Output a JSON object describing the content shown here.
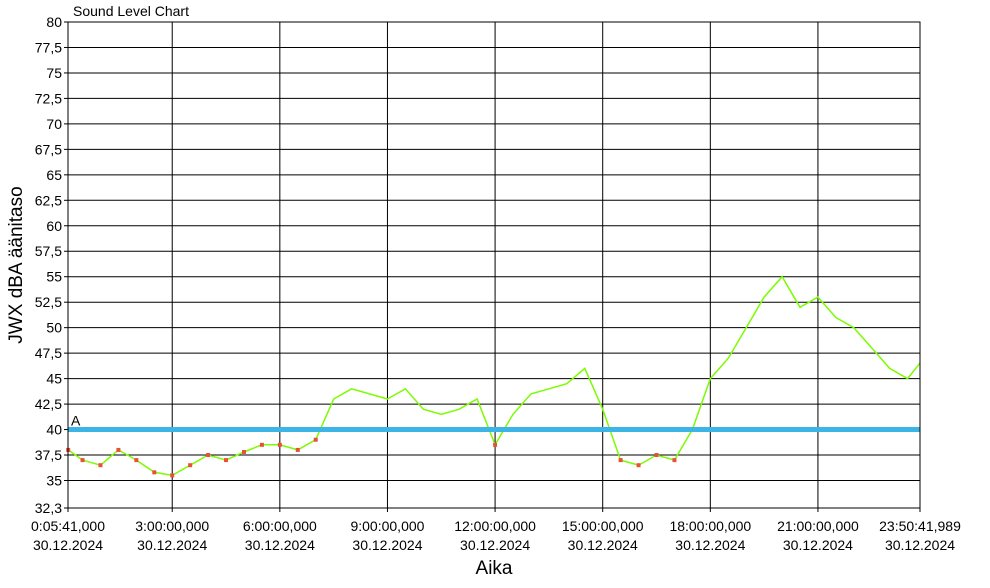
{
  "chart_data": {
    "type": "line",
    "title": "Sound Level Chart",
    "xlabel": "Aika",
    "ylabel": "JWX dBA äänitaso",
    "ylim": [
      32.3,
      80
    ],
    "yticks": [
      "32,3",
      "35",
      "37,5",
      "40",
      "42,5",
      "45",
      "47,5",
      "50",
      "52,5",
      "55",
      "57,5",
      "60",
      "62,5",
      "65",
      "67,5",
      "70",
      "72,5",
      "75",
      "77,5",
      "80"
    ],
    "x_range_hours": [
      0.0947,
      23.845
    ],
    "xticks": [
      {
        "time": "0:05:41,000",
        "date": "30.12.2024",
        "hour": 0.0947
      },
      {
        "time": "3:00:00,000",
        "date": "30.12.2024",
        "hour": 3
      },
      {
        "time": "6:00:00,000",
        "date": "30.12.2024",
        "hour": 6
      },
      {
        "time": "9:00:00,000",
        "date": "30.12.2024",
        "hour": 9
      },
      {
        "time": "12:00:00,000",
        "date": "30.12.2024",
        "hour": 12
      },
      {
        "time": "15:00:00,000",
        "date": "30.12.2024",
        "hour": 15
      },
      {
        "time": "18:00:00,000",
        "date": "30.12.2024",
        "hour": 18
      },
      {
        "time": "21:00:00,000",
        "date": "30.12.2024",
        "hour": 21
      },
      {
        "time": "23:50:41,989",
        "date": "30.12.2024",
        "hour": 23.845
      }
    ],
    "grid": true,
    "threshold": {
      "label": "A",
      "value": 40,
      "color": "#3cb4e6"
    },
    "series": [
      {
        "color": "#7cfc00",
        "marker_color": "#e8503a",
        "x_hours": [
          0.1,
          0.5,
          1,
          1.5,
          2,
          2.5,
          3,
          3.5,
          4,
          4.5,
          5,
          5.5,
          6,
          6.5,
          7,
          7.5,
          8,
          8.5,
          9,
          9.5,
          10,
          10.5,
          11,
          11.5,
          12,
          12.5,
          13,
          13.5,
          14,
          14.5,
          15,
          15.5,
          16,
          16.5,
          17,
          17.5,
          18,
          18.5,
          19,
          19.5,
          20,
          20.5,
          21,
          21.5,
          22,
          22.5,
          23,
          23.5,
          23.84
        ],
        "values": [
          38,
          37,
          36.5,
          38,
          37,
          35.8,
          35.5,
          36.5,
          37.5,
          37,
          37.8,
          38.5,
          38.5,
          38,
          39,
          43,
          44,
          43.5,
          43,
          44,
          42,
          41.5,
          42,
          43,
          38.5,
          41.5,
          43.5,
          44,
          44.5,
          46,
          42,
          37,
          36.5,
          37.5,
          37,
          40,
          45,
          47,
          50,
          53,
          55,
          52,
          53,
          51,
          50,
          48,
          46,
          45,
          46.5
        ]
      }
    ]
  }
}
